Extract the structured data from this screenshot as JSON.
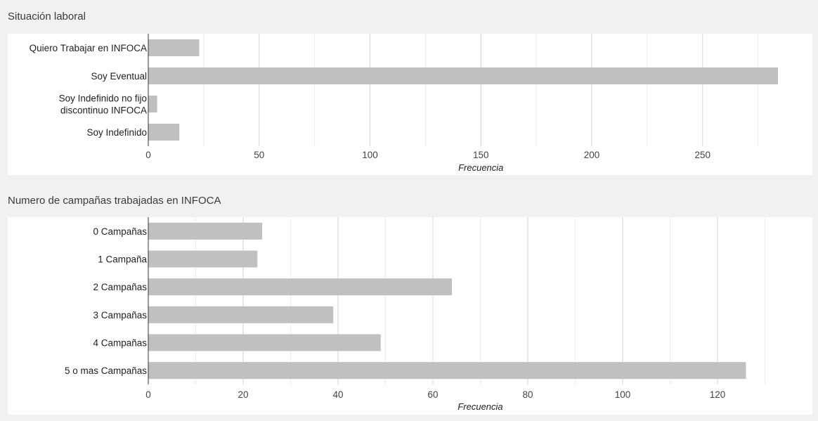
{
  "sections": [
    {
      "title": "Situación laboral"
    },
    {
      "title": "Numero de campañas trabajadas en INFOCA"
    }
  ],
  "chart_data": [
    {
      "type": "bar",
      "orientation": "horizontal",
      "title": "Situación laboral",
      "categories": [
        [
          "Quiero Trabajar en INFOCA"
        ],
        [
          "Soy Eventual"
        ],
        [
          "Soy Indefinido no fijo",
          "discontinuo INFOCA"
        ],
        [
          "Soy Indefinido"
        ]
      ],
      "values": [
        23,
        284,
        4,
        14
      ],
      "xlabel": "Frecuencia",
      "ylabel": "",
      "xlim": [
        0,
        300
      ],
      "xticks": [
        0,
        50,
        100,
        150,
        200,
        250
      ],
      "minor_step": 25,
      "grid": true,
      "bar_color": "#c0c0c0"
    },
    {
      "type": "bar",
      "orientation": "horizontal",
      "title": "Numero de campañas trabajadas en INFOCA",
      "categories": [
        [
          "0 Campañas"
        ],
        [
          "1 Campaña"
        ],
        [
          "2 Campañas"
        ],
        [
          "3 Campañas"
        ],
        [
          "4 Campañas"
        ],
        [
          "5 o mas Campañas"
        ]
      ],
      "values": [
        24,
        23,
        64,
        39,
        49,
        126
      ],
      "xlabel": "Frecuencia",
      "ylabel": "",
      "xlim": [
        0,
        140
      ],
      "xticks": [
        0,
        20,
        40,
        60,
        80,
        100,
        120
      ],
      "minor_step": 10,
      "grid": true,
      "bar_color": "#c0c0c0"
    }
  ]
}
